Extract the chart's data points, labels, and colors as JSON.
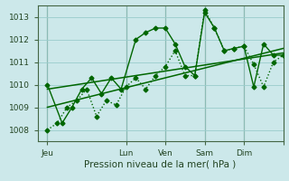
{
  "xlabel": "Pression niveau de la mer( hPa )",
  "bg_color": "#cce8ea",
  "grid_color": "#99cccc",
  "line_color": "#006600",
  "xlim": [
    0,
    100
  ],
  "ylim": [
    1007.5,
    1013.5
  ],
  "yticks": [
    1008,
    1009,
    1010,
    1011,
    1012,
    1013
  ],
  "xtick_positions": [
    4,
    36,
    52,
    68,
    84,
    100
  ],
  "xtick_labels": [
    "Jeu",
    "Lun",
    "Ven",
    "Sam",
    "Dim",
    ""
  ],
  "day_lines": [
    4,
    36,
    52,
    68,
    84
  ],
  "line1_x": [
    4,
    10,
    14,
    18,
    22,
    26,
    30,
    34,
    40,
    44,
    48,
    52,
    56,
    60,
    64,
    68,
    72,
    76,
    80,
    84,
    88,
    92,
    96,
    100
  ],
  "line1_y": [
    1010.0,
    1008.3,
    1009.0,
    1009.8,
    1010.3,
    1009.6,
    1010.3,
    1009.8,
    1012.0,
    1012.3,
    1012.5,
    1012.5,
    1011.8,
    1010.8,
    1010.4,
    1013.2,
    1012.5,
    1011.5,
    1011.6,
    1011.7,
    1009.9,
    1011.8,
    1011.3,
    1011.3
  ],
  "line2_x": [
    4,
    8,
    12,
    16,
    20,
    24,
    28,
    32,
    36,
    40,
    44,
    48,
    52,
    56,
    60,
    64,
    68,
    72,
    76,
    80,
    84,
    88,
    92,
    96,
    100
  ],
  "line2_y": [
    1008.0,
    1008.3,
    1009.0,
    1009.3,
    1009.8,
    1008.6,
    1009.3,
    1009.1,
    1009.9,
    1010.3,
    1009.8,
    1010.4,
    1010.8,
    1011.5,
    1010.4,
    1010.4,
    1013.3,
    1012.5,
    1011.5,
    1011.6,
    1011.7,
    1010.9,
    1009.9,
    1011.0,
    1011.3
  ],
  "trend1_x": [
    4,
    100
  ],
  "trend1_y": [
    1009.8,
    1011.4
  ],
  "trend2_x": [
    4,
    100
  ],
  "trend2_y": [
    1009.0,
    1011.6
  ],
  "marker_size": 2.5,
  "line_width": 1.0
}
